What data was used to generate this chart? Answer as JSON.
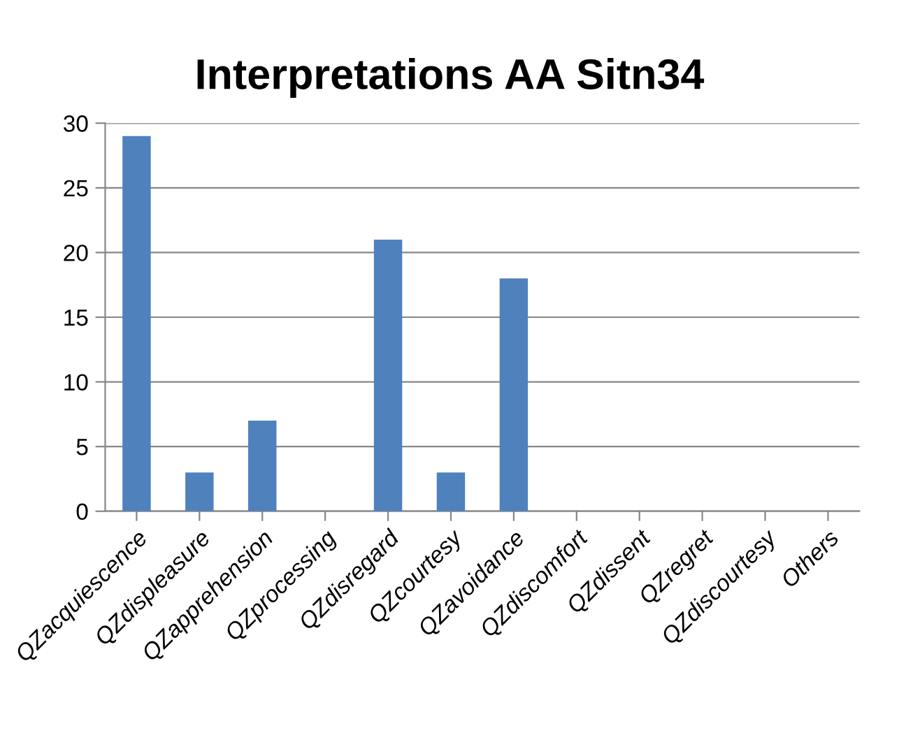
{
  "chart_data": {
    "type": "bar",
    "title": "Interpretations AA Sitn34",
    "categories": [
      "QZacquiescence",
      "QZdispleasure",
      "QZapprehension",
      "QZprocessing",
      "QZdisregard",
      "QZcourtesy",
      "QZavoidance",
      "QZdiscomfort",
      "QZdissent",
      "QZregret",
      "QZdiscourtesy",
      "Others"
    ],
    "values": [
      29,
      3,
      7,
      0,
      21,
      3,
      18,
      0,
      0,
      0,
      0,
      0
    ],
    "color": "#4f81bd",
    "ylim": [
      0,
      30
    ],
    "yticks": [
      0,
      5,
      10,
      15,
      20,
      25,
      30
    ],
    "grid": "y",
    "legend": false
  }
}
